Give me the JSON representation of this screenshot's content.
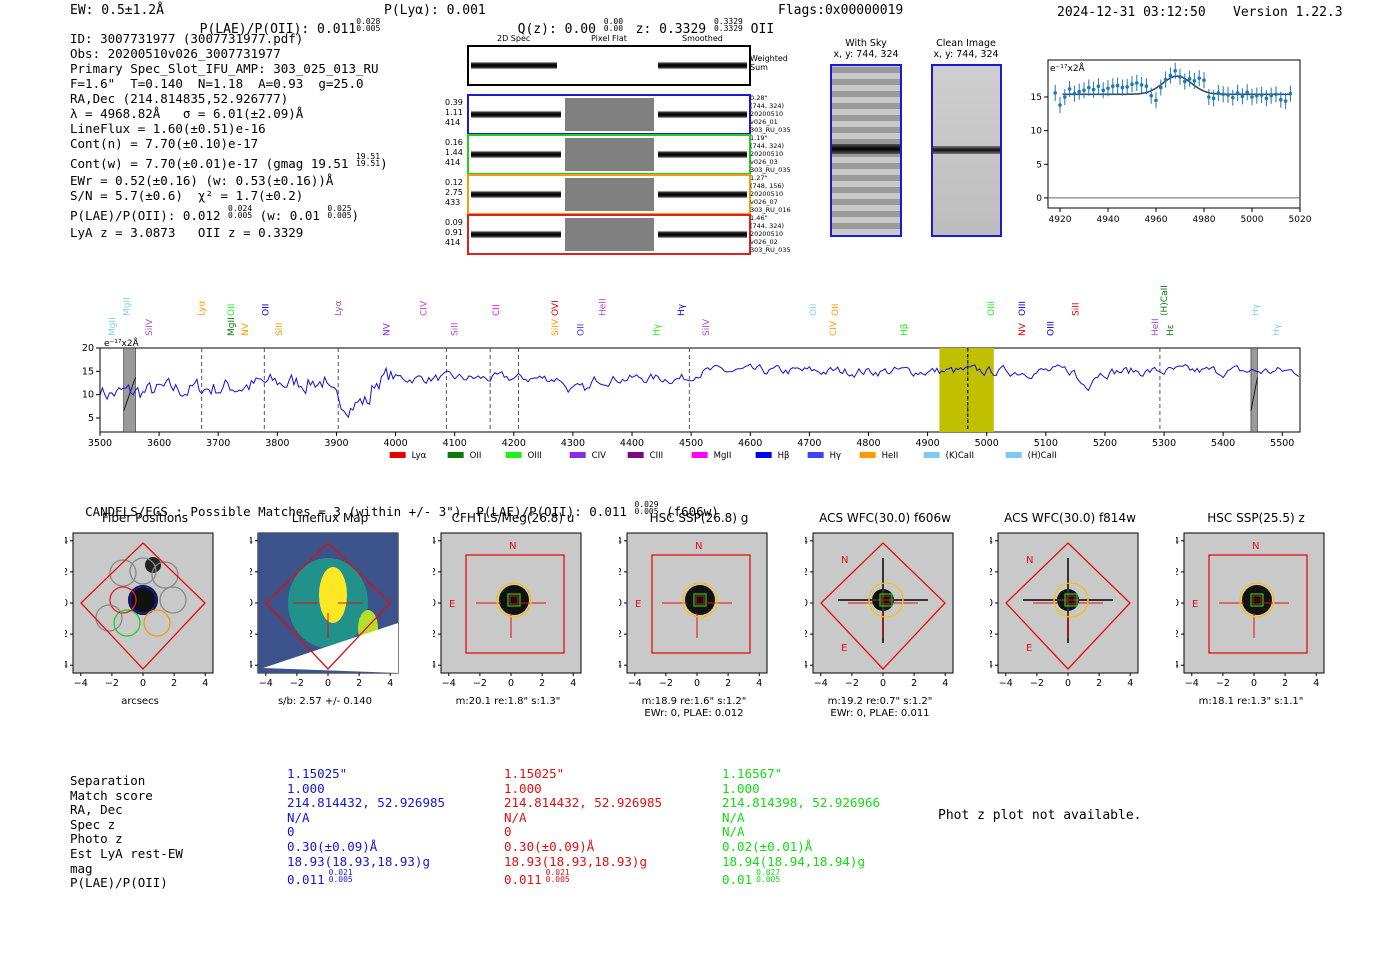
{
  "header": {
    "ew": "EW: 0.5±1.2Å",
    "plae_label": "P(LAE)/P(OII): 0.011",
    "plae_sup": "0.028",
    "plae_sub": "0.005",
    "plya": "P(Lyα): 0.001",
    "qz_label": "Q(z): 0.00",
    "qz_sup": "0.00",
    "qz_sub": "0.00",
    "z_label": "z: 0.3329",
    "z_sup": "0.3329",
    "z_sub": "0.3329",
    "z_line": "OII",
    "flags": "Flags:0x00000019",
    "timestamp": "2024-12-31 03:12:50",
    "version": "Version 1.22.3"
  },
  "info": {
    "id": "ID: 3007731977 (3007731977.pdf)",
    "obs": "Obs: 20200510v026_3007731977",
    "primary": "Primary Spec_Slot_IFU_AMP: 303_025_013_RU",
    "params": "F=1.6\"  T=0.140  N=1.18  A=0.93  g=25.0",
    "radec": "RA,Dec (214.814835,52.926777)",
    "lambda": "λ = 4968.82Å   σ = 6.01(±2.09)Å",
    "lineflux": "LineFlux = 1.60(±0.51)e-16",
    "contn": "Cont(n) = 7.70(±0.10)e-17",
    "contw": "Cont(w) = 7.70(±0.01)e-17 (gmag 19.51",
    "contw_sup": "19.51",
    "contw_sub": "19.51",
    "ewr": "EWr = 0.52(±0.16) (w: 0.53(±0.16))Å",
    "sn": "S/N = 5.7(±0.6)  χ² = 1.7(±0.2)",
    "plae2": "P(LAE)/P(OII): 0.012",
    "plae2_sup": "0.024",
    "plae2_sub": "0.005",
    "plae2_w": "(w: 0.01",
    "plae2_w_sup": "0.025",
    "plae2_w_sub": "0.005",
    "lya": "LyA z = 3.0873   OII z = 0.3329"
  },
  "spec2d": {
    "headers": [
      "2D Spec",
      "Pixel Flat",
      "Smoothed"
    ],
    "weighted_label": "Weighted Sum",
    "rows": [
      {
        "left": [
          "0.39",
          "1.11",
          "414"
        ],
        "right": [
          "0.28\"",
          "(744, 324)",
          "20200510",
          "v026_01",
          "303_RU_035"
        ],
        "color": "#1a1ad6"
      },
      {
        "left": [
          "0.16",
          "1.44",
          "414"
        ],
        "right": [
          "1.19\"",
          "(744, 324)",
          "20200510",
          "v026_03",
          "303_RU_035"
        ],
        "color": "#22cc22"
      },
      {
        "left": [
          "0.12",
          "2.75",
          "433"
        ],
        "right": [
          "1.27\"",
          "(748, 156)",
          "20200510",
          "v026_07",
          "303_RU_016"
        ],
        "color": "#f39c12"
      },
      {
        "left": [
          "0.09",
          "0.91",
          "414"
        ],
        "right": [
          "1.46\"",
          "(744, 324)",
          "20200510",
          "v026_02",
          "303_RU_035"
        ],
        "color": "#e02020"
      }
    ]
  },
  "cutouts": {
    "sky_title": "With Sky",
    "sky_sub": "x, y: 744, 324",
    "clean_title": "Clean Image",
    "clean_sub": "x, y: 744, 324"
  },
  "fit": {
    "units": "e⁻¹⁷x2Å"
  },
  "fullspec": {
    "units": "e⁻¹⁷x2Å",
    "legend": [
      "Lyα",
      "OII",
      "OIII",
      "CIV",
      "CIII",
      "MgII",
      "Hβ",
      "Hγ",
      "HeII",
      "(K)CaII",
      "(H)CaII"
    ],
    "legend_colors": [
      "#e00000",
      "#0a7a0a",
      "#22ee22",
      "#8a2be2",
      "#7d0a7d",
      "#ff00ff",
      "#0000ee",
      "#4040ff",
      "#ff9900",
      "#7fc8f0",
      "#7fc8f0"
    ]
  },
  "lines": [
    {
      "label": "MgII",
      "color": "#87ceeb",
      "wave": 3520
    },
    {
      "label": "MgII",
      "color": "#87ceeb",
      "wave": 3545
    },
    {
      "label": "SiIV",
      "color": "#b04bcc",
      "wave": 3583
    },
    {
      "label": "Lyα",
      "color": "#ff9900",
      "wave": 3672
    },
    {
      "label": "MgII",
      "color": "#0a7a0a",
      "wave": 3722
    },
    {
      "label": "OII",
      "color": "#22ee22",
      "wave": 3722
    },
    {
      "label": "NV",
      "color": "#ff9900",
      "wave": 3745
    },
    {
      "label": "OII",
      "color": "#0000cc",
      "wave": 3780
    },
    {
      "label": "SiII",
      "color": "#ff9900",
      "wave": 3803
    },
    {
      "label": "Lyα",
      "color": "#b04bcc",
      "wave": 3903
    },
    {
      "label": "NV",
      "color": "#8a2be2",
      "wave": 3985
    },
    {
      "label": "CIV",
      "color": "#b04bcc",
      "wave": 4047
    },
    {
      "label": "SiII",
      "color": "#b04bcc",
      "wave": 4100
    },
    {
      "label": "CII",
      "color": "#ff00ff",
      "wave": 4170
    },
    {
      "label": "SiIV",
      "color": "#ff9900",
      "wave": 4270
    },
    {
      "label": "OVI",
      "color": "#e00000",
      "wave": 4270
    },
    {
      "label": "OII",
      "color": "#4040ff",
      "wave": 4313
    },
    {
      "label": "HeII",
      "color": "#b04bcc",
      "wave": 4350
    },
    {
      "label": "Hγ",
      "color": "#22ee22",
      "wave": 4441
    },
    {
      "label": "Hγ",
      "color": "#0000ee",
      "wave": 4483
    },
    {
      "label": "SiIV",
      "color": "#b04bcc",
      "wave": 4525
    },
    {
      "label": "OII",
      "color": "#87ceeb",
      "wave": 4706
    },
    {
      "label": "CIV",
      "color": "#ff9900",
      "wave": 4740
    },
    {
      "label": "OII",
      "color": "#ff9900",
      "wave": 4743
    },
    {
      "label": "Hβ",
      "color": "#22ee22",
      "wave": 4860
    },
    {
      "label": "OIII",
      "color": "#22ee22",
      "wave": 5007
    },
    {
      "label": "NV",
      "color": "#e00000",
      "wave": 5060
    },
    {
      "label": "OIII",
      "color": "#0000cc",
      "wave": 5060
    },
    {
      "label": "OIII",
      "color": "#0000cc",
      "wave": 5108
    },
    {
      "label": "SiII",
      "color": "#e00000",
      "wave": 5150
    },
    {
      "label": "HeII",
      "color": "#b04bcc",
      "wave": 5285
    },
    {
      "label": "(H)CaII",
      "color": "#0a7a0a",
      "wave": 5300
    },
    {
      "label": "Hε",
      "color": "#0a7a0a",
      "wave": 5310
    },
    {
      "label": "Hγ",
      "color": "#87ceeb",
      "wave": 5455
    },
    {
      "label": "Hγ",
      "color": "#87ceeb",
      "wave": 5490
    }
  ],
  "candels": {
    "title": "CANDELS/EGS : Possible Matches = 3 (within +/- 3\")  P(LAE)/P(OII): 0.011",
    "title_sup": "0.029",
    "title_sub": "0.005",
    "title_tail": "(f606w)"
  },
  "imaging": [
    {
      "title": "Fiber Positions",
      "caption": [
        "arcsecs"
      ],
      "kind": "fiber"
    },
    {
      "title": "Lineflux Map",
      "caption": [
        "s/b: 2.57 +/- 0.140"
      ],
      "kind": "lineflux"
    },
    {
      "title": "CFHTLS/Meg(26.8) u",
      "caption": [
        "m:20.1  re:1.8\"  s:1.3\""
      ],
      "kind": "square",
      "compass": [
        "N",
        "E"
      ]
    },
    {
      "title": "HSC SSP(26.8) g",
      "caption": [
        "m:18.9  re:1.6\"  s:1.2\"",
        "EWr: 0, PLAE: 0.012"
      ],
      "kind": "square",
      "compass": [
        "N",
        "E"
      ]
    },
    {
      "title": "ACS WFC(30.0) f606w",
      "caption": [
        "m:19.2  re:0.7\"  s:1.2\"",
        "EWr: 0, PLAE: 0.011"
      ],
      "kind": "diamond",
      "compass": [
        "N",
        "E"
      ]
    },
    {
      "title": "ACS WFC(30.0) f814w",
      "caption": [
        ""
      ],
      "kind": "diamond",
      "compass": [
        "N",
        "E"
      ]
    },
    {
      "title": "HSC SSP(25.5) z",
      "caption": [
        "m:18.1  re:1.3\"  s:1.1\""
      ],
      "kind": "square",
      "compass": [
        "N",
        "E"
      ]
    }
  ],
  "matches": {
    "labels": [
      "Separation",
      "Match score",
      "RA, Dec",
      "Spec z",
      "Photo z",
      "Est LyA rest-EW",
      "mag",
      "P(LAE)/P(OII)"
    ],
    "columns": [
      {
        "color": "#1515d6",
        "values": [
          "1.15025\"",
          "1.000",
          "214.814432, 52.926985",
          "N/A",
          "0",
          "0.30(±0.09)Å",
          "18.93(18.93,18.93)g",
          "0.011"
        ],
        "plae_sup": "0.021",
        "plae_sub": "0.005"
      },
      {
        "color": "#e01010",
        "values": [
          "1.15025\"",
          "1.000",
          "214.814432, 52.926985",
          "N/A",
          "0",
          "0.30(±0.09)Å",
          "18.93(18.93,18.93)g",
          "0.011"
        ],
        "plae_sup": "0.021",
        "plae_sub": "0.005"
      },
      {
        "color": "#11dd11",
        "values": [
          "1.16567\"",
          "1.000",
          "214.814398, 52.926966",
          "N/A",
          "N/A",
          "0.02(±0.01)Å",
          "18.94(18.94,18.94)g",
          "0.01"
        ],
        "plae_sup": "0.027",
        "plae_sub": "0.005"
      }
    ],
    "photz_note": "Phot z plot not available."
  },
  "chart_data": [
    {
      "type": "scatter",
      "title": "",
      "xlabel": "",
      "ylabel": "e⁻¹⁷x2Å",
      "xlim": [
        4915,
        5020
      ],
      "ylim": [
        -1.5,
        20.5
      ],
      "xticks": [
        4920,
        4940,
        4960,
        4980,
        5000,
        5020
      ],
      "yticks": [
        0,
        5,
        10,
        15
      ],
      "x": [
        4918,
        4920,
        4922,
        4924,
        4926,
        4928,
        4930,
        4932,
        4934,
        4936,
        4938,
        4940,
        4942,
        4944,
        4946,
        4948,
        4950,
        4952,
        4954,
        4956,
        4958,
        4960,
        4962,
        4964,
        4966,
        4968,
        4970,
        4972,
        4974,
        4976,
        4978,
        4980,
        4982,
        4984,
        4986,
        4988,
        4990,
        4992,
        4994,
        4996,
        4998,
        5000,
        5002,
        5004,
        5006,
        5008,
        5010,
        5012,
        5014,
        5016
      ],
      "y": [
        15.6,
        13.8,
        15.0,
        16.2,
        15.5,
        15.8,
        16.0,
        16.4,
        16.1,
        16.6,
        16.0,
        16.3,
        16.6,
        16.7,
        16.4,
        16.5,
        16.9,
        17.1,
        16.8,
        16.6,
        15.2,
        14.5,
        16.4,
        17.6,
        18.2,
        18.9,
        18.0,
        17.3,
        17.7,
        17.4,
        17.8,
        17.5,
        15.0,
        14.8,
        15.6,
        15.4,
        15.3,
        14.9,
        15.6,
        15.1,
        15.7,
        15.0,
        15.2,
        15.3,
        14.8,
        15.2,
        15.4,
        14.6,
        14.4,
        15.5
      ],
      "err": 1.2,
      "fit": {
        "continuum": 15.4,
        "center": 4968.8,
        "sigma": 6.0,
        "amplitude": 2.7
      }
    },
    {
      "type": "line",
      "title": "",
      "xlabel": "",
      "ylabel": "e⁻¹⁷x2Å",
      "xlim": [
        3500,
        5530
      ],
      "ylim": [
        2,
        20
      ],
      "xticks": [
        3500,
        3600,
        3700,
        3800,
        3900,
        4000,
        4100,
        4200,
        4300,
        4400,
        4500,
        4600,
        4700,
        4800,
        4900,
        5000,
        5100,
        5200,
        5300,
        5400,
        5500
      ],
      "yticks": [
        5,
        10,
        15,
        20
      ],
      "dashed_x": [
        3672,
        3778,
        3903,
        4086,
        4160,
        4208,
        4497,
        4968,
        5293
      ],
      "highlight": [
        4920,
        5012
      ],
      "highlight_center": 4968,
      "masked": [
        [
          3540,
          3560
        ],
        [
          3460,
          3550
        ]
      ],
      "masked2": [
        [
          5447,
          5460
        ]
      ],
      "seed": 7
    }
  ]
}
